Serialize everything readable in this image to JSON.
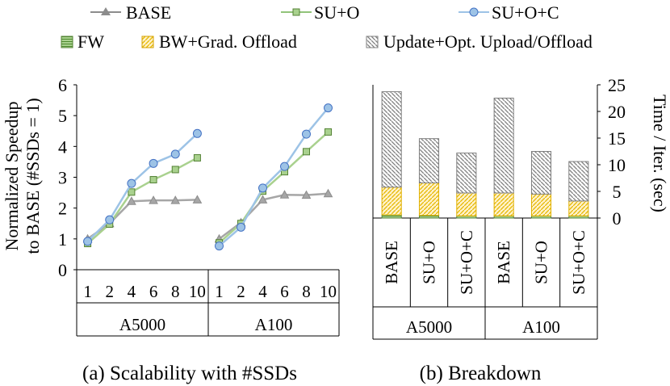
{
  "legend_lines": [
    {
      "label": "BASE",
      "color": "#a6a6a6",
      "marker": "triangle"
    },
    {
      "label": "SU+O",
      "color": "#a9d18e",
      "marker": "square",
      "stroke": "#70ad47"
    },
    {
      "label": "SU+O+C",
      "color": "#9dc3e6",
      "marker": "circle",
      "stroke": "#4472c4"
    }
  ],
  "legend_bars": [
    {
      "label": "FW",
      "fill": "#92c47a",
      "pattern": "hlines"
    },
    {
      "label": "BW+Grad. Offload",
      "fill": "#ffe699",
      "pattern": "diag-up",
      "stroke": "#e0b000"
    },
    {
      "label": "Update+Opt. Upload/Offload",
      "fill": "#d9d9d9",
      "pattern": "diag-down",
      "stroke": "#7f7f7f"
    }
  ],
  "captions": {
    "a": "(a) Scalability with #SSDs",
    "b": "(b) Breakdown"
  },
  "chart_data": [
    {
      "type": "line",
      "title": "(a) Scalability with #SSDs",
      "ylabel_line1": "Normalized Speedup",
      "ylabel_line2": "to BASE (#SSDs = 1)",
      "ylim": [
        0,
        6
      ],
      "yticks": [
        "0",
        "1",
        "2",
        "3",
        "4",
        "5",
        "6"
      ],
      "groups": [
        {
          "name": "A5000",
          "x": [
            "1",
            "2",
            "4",
            "6",
            "8",
            "10"
          ],
          "series": [
            {
              "name": "BASE",
              "values": [
                1.0,
                1.5,
                2.22,
                2.25,
                2.25,
                2.27
              ]
            },
            {
              "name": "SU+O",
              "values": [
                0.85,
                1.48,
                2.52,
                2.92,
                3.25,
                3.63
              ]
            },
            {
              "name": "SU+O+C",
              "values": [
                0.92,
                1.62,
                2.8,
                3.45,
                3.75,
                4.42
              ]
            }
          ]
        },
        {
          "name": "A100",
          "x": [
            "1",
            "2",
            "4",
            "6",
            "8",
            "10"
          ],
          "series": [
            {
              "name": "BASE",
              "values": [
                1.0,
                1.53,
                2.27,
                2.43,
                2.42,
                2.47
              ]
            },
            {
              "name": "SU+O",
              "values": [
                0.87,
                1.5,
                2.55,
                3.18,
                3.83,
                4.47
              ]
            },
            {
              "name": "SU+O+C",
              "values": [
                0.77,
                1.38,
                2.65,
                3.35,
                4.4,
                5.25
              ]
            }
          ]
        }
      ]
    },
    {
      "type": "bar",
      "stacked": true,
      "title": "(b) Breakdown",
      "ylabel": "Time / Iter. (sec)",
      "ylim": [
        0,
        25
      ],
      "yticks": [
        "0",
        "5",
        "10",
        "15",
        "20",
        "25"
      ],
      "groups": [
        "A5000",
        "A100"
      ],
      "categories": [
        "BASE",
        "SU+O",
        "SU+O+C",
        "BASE",
        "SU+O",
        "SU+O+C"
      ],
      "category_group": [
        "A5000",
        "A5000",
        "A5000",
        "A100",
        "A100",
        "A100"
      ],
      "series": [
        {
          "name": "FW",
          "values": [
            0.6,
            0.5,
            0.4,
            0.4,
            0.4,
            0.4
          ]
        },
        {
          "name": "BW+Grad. Offload",
          "values": [
            5.2,
            6.1,
            4.3,
            4.3,
            4.1,
            2.8
          ]
        },
        {
          "name": "Update+Opt. Upload/Offload",
          "values": [
            17.9,
            8.3,
            7.5,
            17.8,
            8.0,
            7.4
          ]
        }
      ]
    }
  ]
}
